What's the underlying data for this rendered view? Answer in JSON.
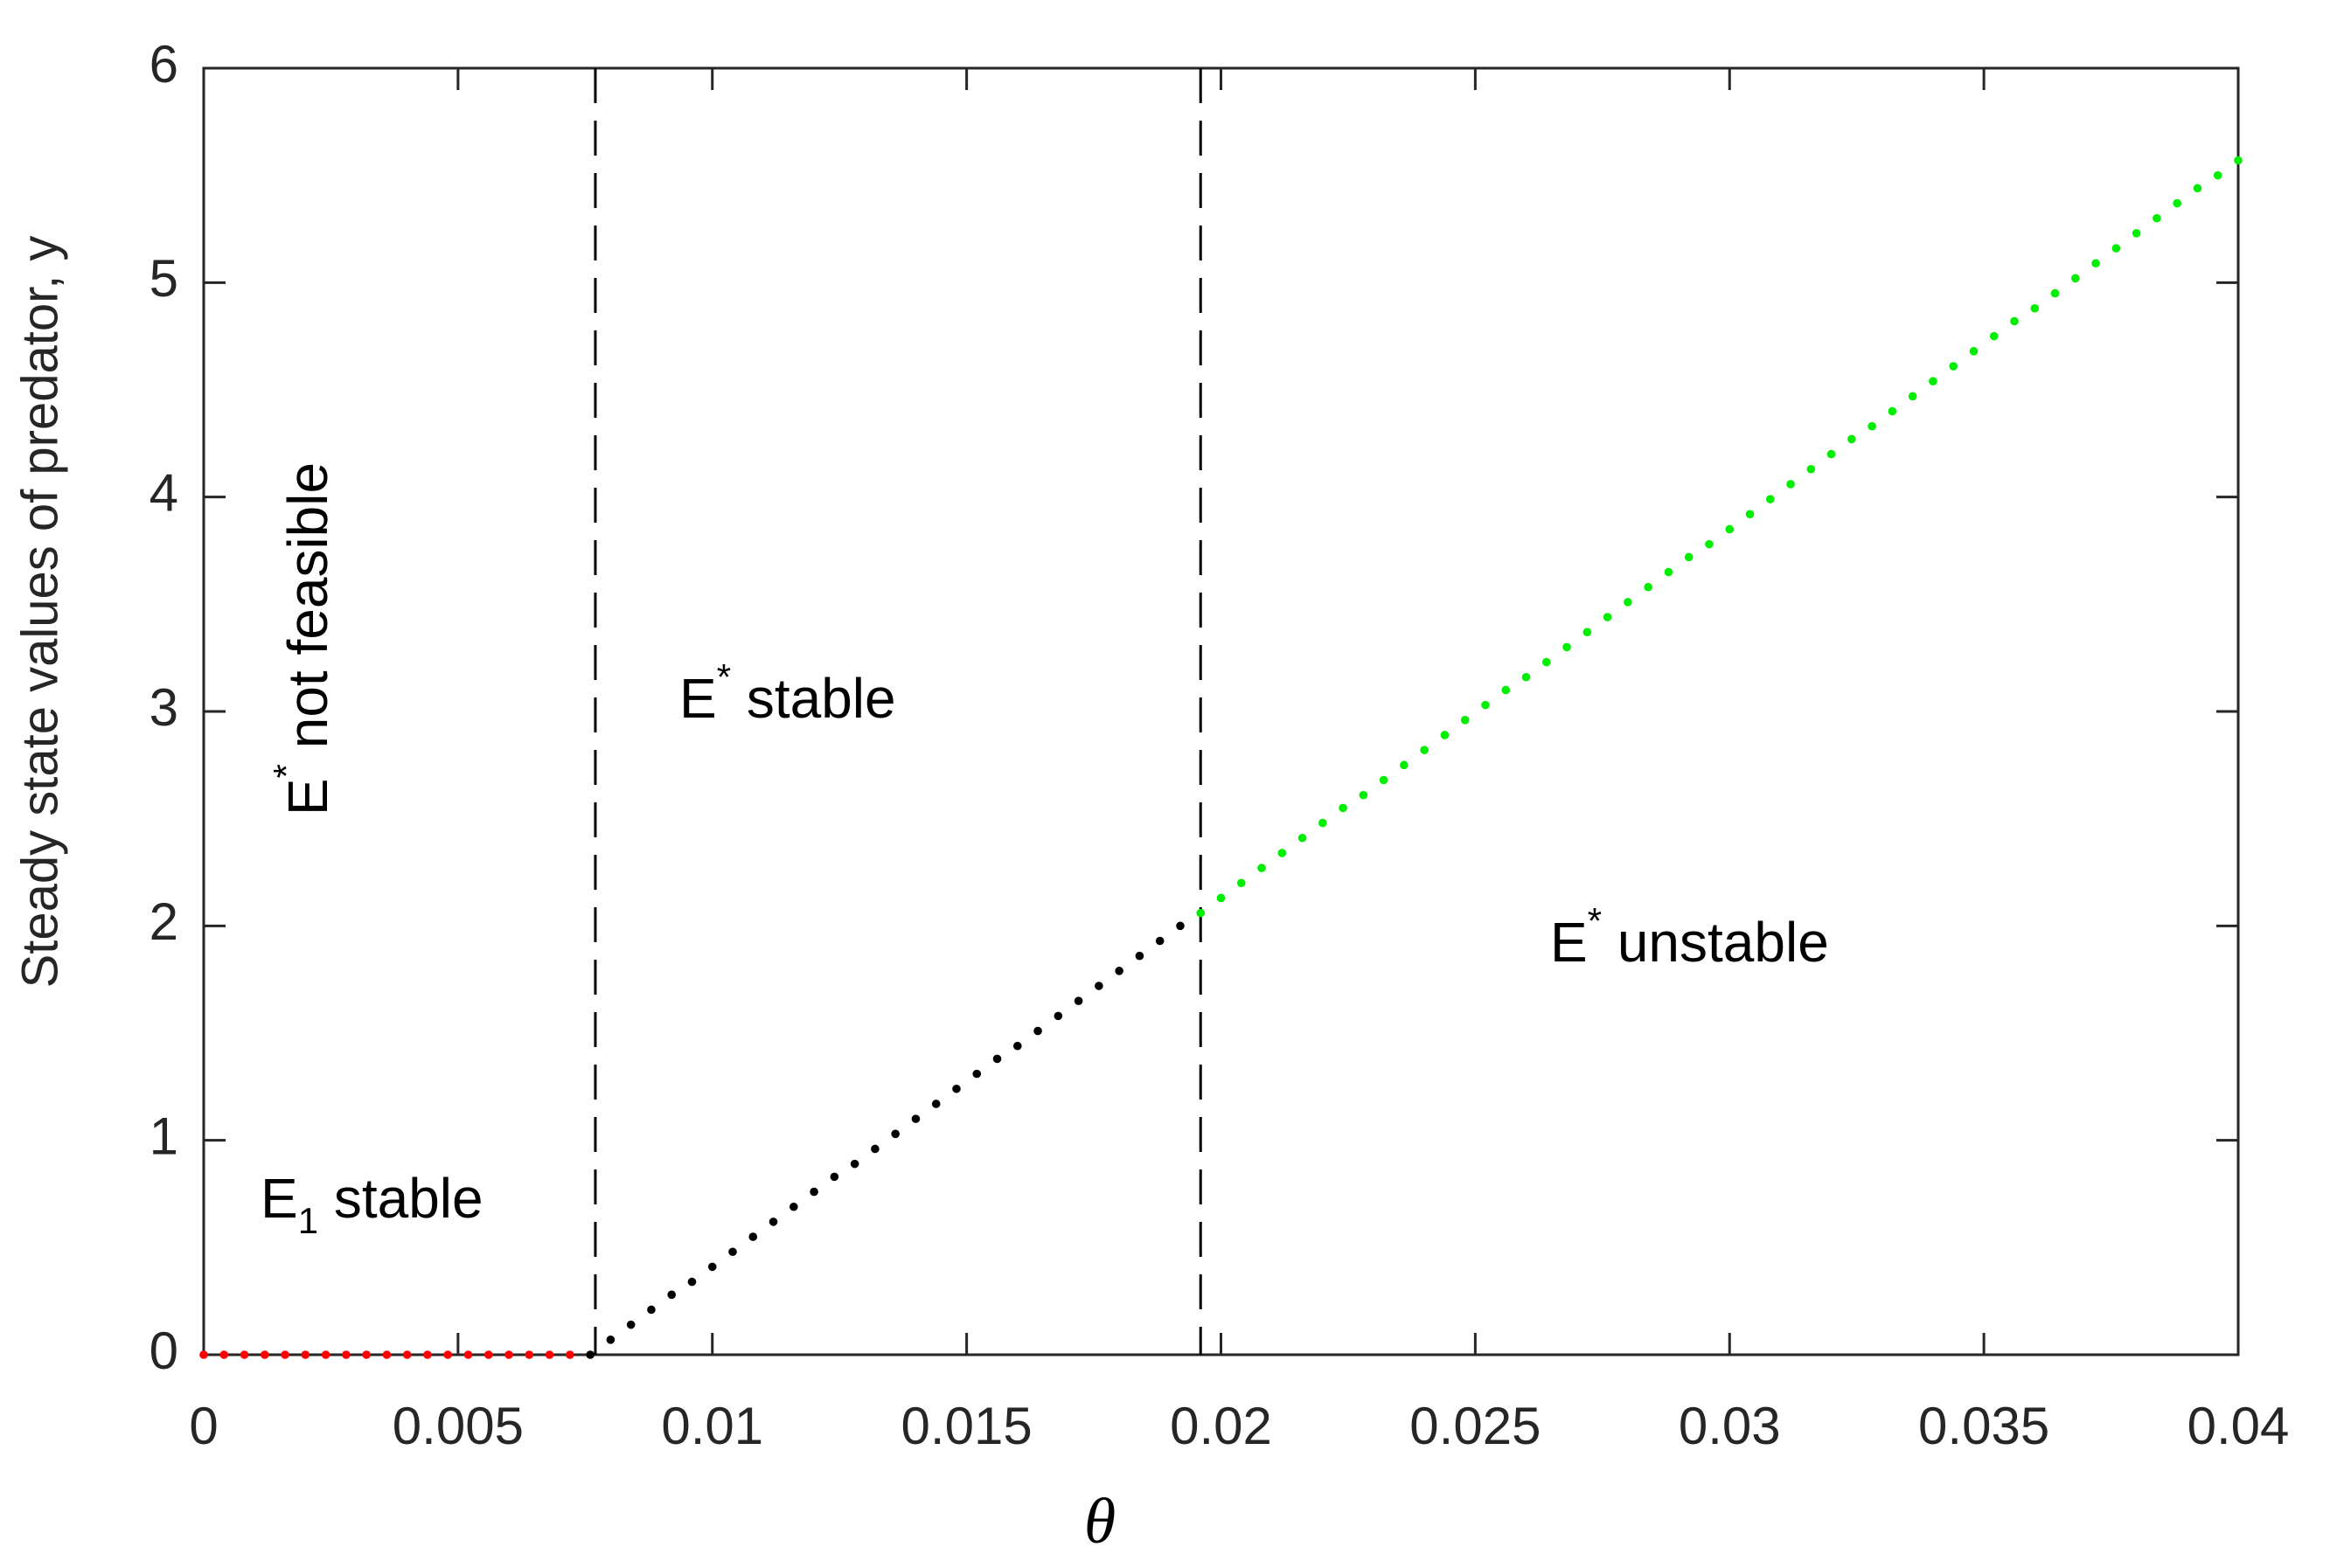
{
  "chart_data": {
    "type": "scatter",
    "x_label": "θ",
    "y_label": "Steady state values of predator, y",
    "xlim": [
      0,
      0.04
    ],
    "ylim": [
      0,
      6
    ],
    "xticks": [
      0,
      0.005,
      0.01,
      0.015,
      0.02,
      0.025,
      0.03,
      0.035,
      0.04
    ],
    "yticks": [
      0,
      1,
      2,
      3,
      4,
      5,
      6
    ],
    "grid": false,
    "vlines": [
      0.0077,
      0.0196
    ],
    "annotations": [
      {
        "base": "E",
        "sup": "*",
        "text": " not feasible"
      },
      {
        "base": "E",
        "sup": "*",
        "text": " stable"
      },
      {
        "base": "E",
        "sup": "*",
        "text": " unstable"
      },
      {
        "base": "E",
        "sub": "1",
        "text": " stable"
      }
    ],
    "series": [
      {
        "color": "#ff0000",
        "x": [
          0,
          0.0004,
          0.0008,
          0.0012,
          0.0016,
          0.002,
          0.0024,
          0.0028,
          0.0032,
          0.0036,
          0.004,
          0.0044,
          0.0048,
          0.0052,
          0.0056,
          0.006,
          0.0064,
          0.0068,
          0.0072
        ],
        "values": [
          0,
          0,
          0,
          0,
          0,
          0,
          0,
          0,
          0,
          0,
          0,
          0,
          0,
          0,
          0,
          0,
          0,
          0,
          0
        ]
      },
      {
        "color": "#000000",
        "x": [
          0.0076,
          0.008,
          0.0084,
          0.0088,
          0.0092,
          0.0096,
          0.01,
          0.0104,
          0.0108,
          0.0112,
          0.0116,
          0.012,
          0.0124,
          0.0128,
          0.0132,
          0.0136,
          0.014,
          0.0144,
          0.0148,
          0.0152,
          0.0156,
          0.016,
          0.0164,
          0.0168,
          0.0172,
          0.0176,
          0.018,
          0.0184,
          0.0188,
          0.0192
        ],
        "values": [
          0,
          0.07,
          0.14,
          0.21,
          0.28,
          0.34,
          0.41,
          0.48,
          0.55,
          0.62,
          0.69,
          0.76,
          0.83,
          0.89,
          0.96,
          1.03,
          1.1,
          1.17,
          1.24,
          1.31,
          1.38,
          1.44,
          1.51,
          1.58,
          1.65,
          1.72,
          1.79,
          1.86,
          1.93,
          2.0
        ]
      },
      {
        "color": "#00ee00",
        "x": [
          0.0196,
          0.02,
          0.0204,
          0.0208,
          0.0212,
          0.0216,
          0.022,
          0.0224,
          0.0228,
          0.0232,
          0.0236,
          0.024,
          0.0244,
          0.0248,
          0.0252,
          0.0256,
          0.026,
          0.0264,
          0.0268,
          0.0272,
          0.0276,
          0.028,
          0.0284,
          0.0288,
          0.0292,
          0.0296,
          0.03,
          0.0304,
          0.0308,
          0.0312,
          0.0316,
          0.032,
          0.0324,
          0.0328,
          0.0332,
          0.0336,
          0.034,
          0.0344,
          0.0348,
          0.0352,
          0.0356,
          0.036,
          0.0364,
          0.0368,
          0.0372,
          0.0376,
          0.038,
          0.0384,
          0.0388,
          0.0392,
          0.0396,
          0.04
        ],
        "values": [
          2.06,
          2.13,
          2.2,
          2.27,
          2.34,
          2.41,
          2.48,
          2.55,
          2.61,
          2.68,
          2.75,
          2.82,
          2.89,
          2.96,
          3.03,
          3.1,
          3.16,
          3.23,
          3.3,
          3.37,
          3.44,
          3.51,
          3.58,
          3.65,
          3.72,
          3.78,
          3.85,
          3.92,
          3.99,
          4.06,
          4.13,
          4.2,
          4.27,
          4.33,
          4.4,
          4.47,
          4.54,
          4.61,
          4.68,
          4.75,
          4.82,
          4.88,
          4.95,
          5.02,
          5.09,
          5.16,
          5.23,
          5.3,
          5.37,
          5.44,
          5.5,
          5.57
        ]
      }
    ]
  }
}
